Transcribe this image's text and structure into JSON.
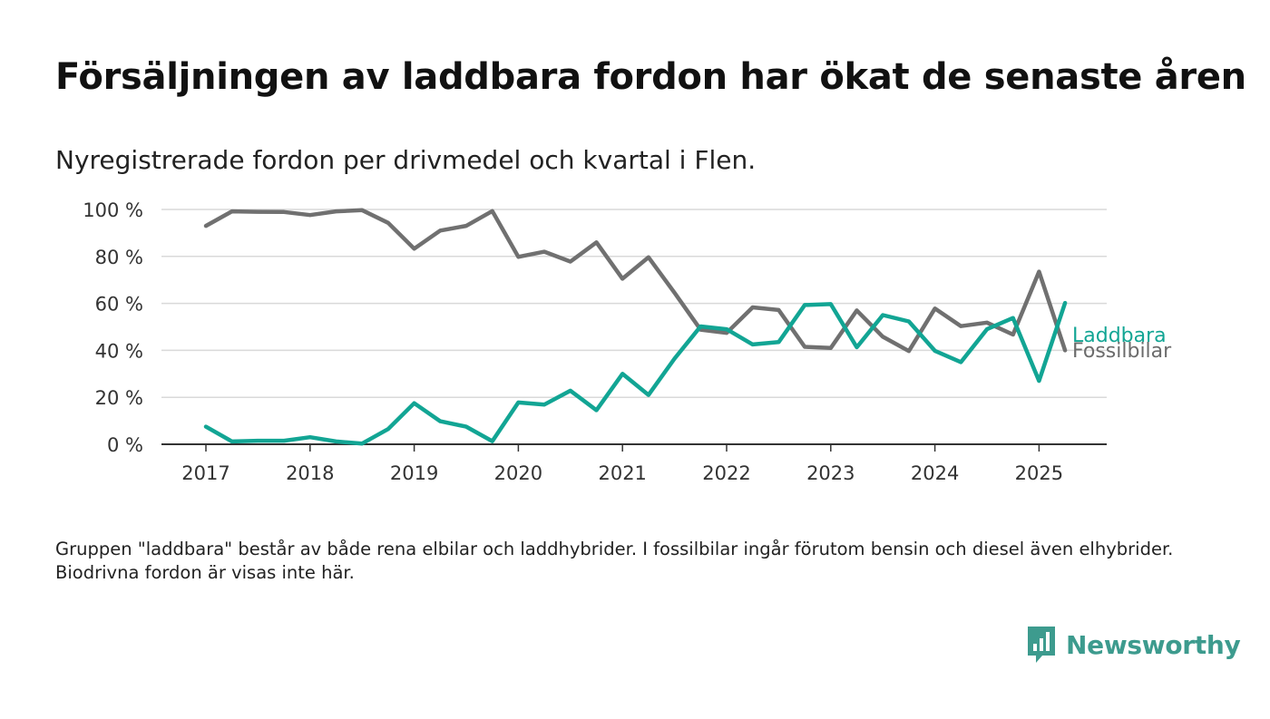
{
  "title": "Försäljningen av laddbara fordon har ökat de senaste åren",
  "subtitle": "Nyregistrerade fordon per drivmedel och kvartal i Flen.",
  "footnote": "Gruppen \"laddbara\" består av både rena elbilar och laddhybrider. I fossilbilar ingår förutom bensin och diesel även elhybrider. Biodrivna fordon är visas inte här.",
  "brand": {
    "name": "Newsworthy",
    "icon": "newsworthy-logo-icon",
    "color": "#3d9b8e"
  },
  "chart_data": {
    "type": "line",
    "ylim": [
      0,
      100
    ],
    "yticks": [
      0,
      20,
      40,
      60,
      80,
      100
    ],
    "ytick_labels": [
      "0 %",
      "20 %",
      "40 %",
      "60 %",
      "80 %",
      "100 %"
    ],
    "xticks": [
      "2017",
      "2018",
      "2019",
      "2020",
      "2021",
      "2022",
      "2023",
      "2024",
      "2025"
    ],
    "x": [
      "2017-Q1",
      "2017-Q2",
      "2017-Q3",
      "2017-Q4",
      "2018-Q1",
      "2018-Q2",
      "2018-Q3",
      "2018-Q4",
      "2019-Q1",
      "2019-Q2",
      "2019-Q3",
      "2019-Q4",
      "2020-Q1",
      "2020-Q2",
      "2020-Q3",
      "2020-Q4",
      "2021-Q1",
      "2021-Q2",
      "2021-Q3",
      "2021-Q4",
      "2022-Q1",
      "2022-Q2",
      "2022-Q3",
      "2022-Q4",
      "2023-Q1",
      "2023-Q2",
      "2023-Q3",
      "2023-Q4",
      "2024-Q1",
      "2024-Q2",
      "2024-Q3",
      "2024-Q4",
      "2025-Q1",
      "2025-Q2"
    ],
    "grid": true,
    "series": [
      {
        "name": "Laddbara",
        "color": "#12a594",
        "label_color": "#12a594",
        "values": [
          7.5,
          1.2,
          1.5,
          1.5,
          3.0,
          1.2,
          0.3,
          6.5,
          17.5,
          9.8,
          7.5,
          1.3,
          17.8,
          16.9,
          22.8,
          14.5,
          30.0,
          21.0,
          36.5,
          50.2,
          49.0,
          42.5,
          43.5,
          59.3,
          59.7,
          41.3,
          55.0,
          52.3,
          39.8,
          35.0,
          49.0,
          53.8,
          27.0,
          60.2
        ]
      },
      {
        "name": "Fossilbilar",
        "color": "#707070",
        "label_color": "#6b6b6b",
        "values": [
          93.0,
          99.2,
          99.0,
          98.9,
          97.6,
          99.2,
          99.7,
          94.3,
          83.3,
          91.0,
          93.0,
          99.3,
          79.8,
          82.0,
          77.8,
          86.0,
          70.5,
          79.6,
          64.5,
          48.8,
          47.4,
          58.3,
          57.2,
          41.5,
          41.0,
          57.0,
          45.8,
          39.7,
          57.8,
          50.3,
          51.8,
          46.7,
          73.5,
          40.0
        ]
      }
    ]
  }
}
